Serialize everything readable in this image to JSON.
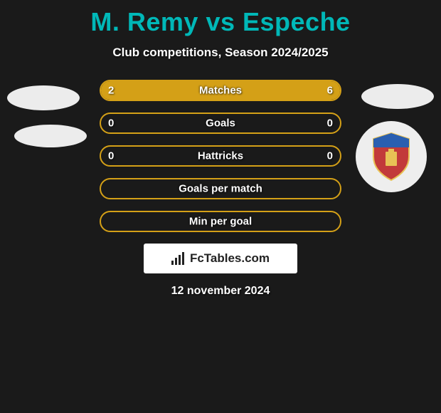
{
  "title": "M. Remy vs Espeche",
  "subtitle": "Club competitions, Season 2024/2025",
  "footer_brand": "FcTables.com",
  "footer_date": "12 november 2024",
  "colors": {
    "title": "#00b8b8",
    "bar_border": "#d4a017",
    "bar_fill": "#d4a017",
    "background": "#1a1a1a",
    "text": "#ffffff"
  },
  "crest": {
    "shield_fill": "#c23a3a",
    "shield_top": "#2a5fb0",
    "trim": "#e8c255"
  },
  "stats": [
    {
      "label": "Matches",
      "left_value": "2",
      "right_value": "6",
      "left_fill_pct": 25,
      "right_fill_pct": 75
    },
    {
      "label": "Goals",
      "left_value": "0",
      "right_value": "0",
      "left_fill_pct": 0,
      "right_fill_pct": 0
    },
    {
      "label": "Hattricks",
      "left_value": "0",
      "right_value": "0",
      "left_fill_pct": 0,
      "right_fill_pct": 0
    },
    {
      "label": "Goals per match",
      "left_value": "",
      "right_value": "",
      "left_fill_pct": 0,
      "right_fill_pct": 0
    },
    {
      "label": "Min per goal",
      "left_value": "",
      "right_value": "",
      "left_fill_pct": 0,
      "right_fill_pct": 0
    }
  ]
}
